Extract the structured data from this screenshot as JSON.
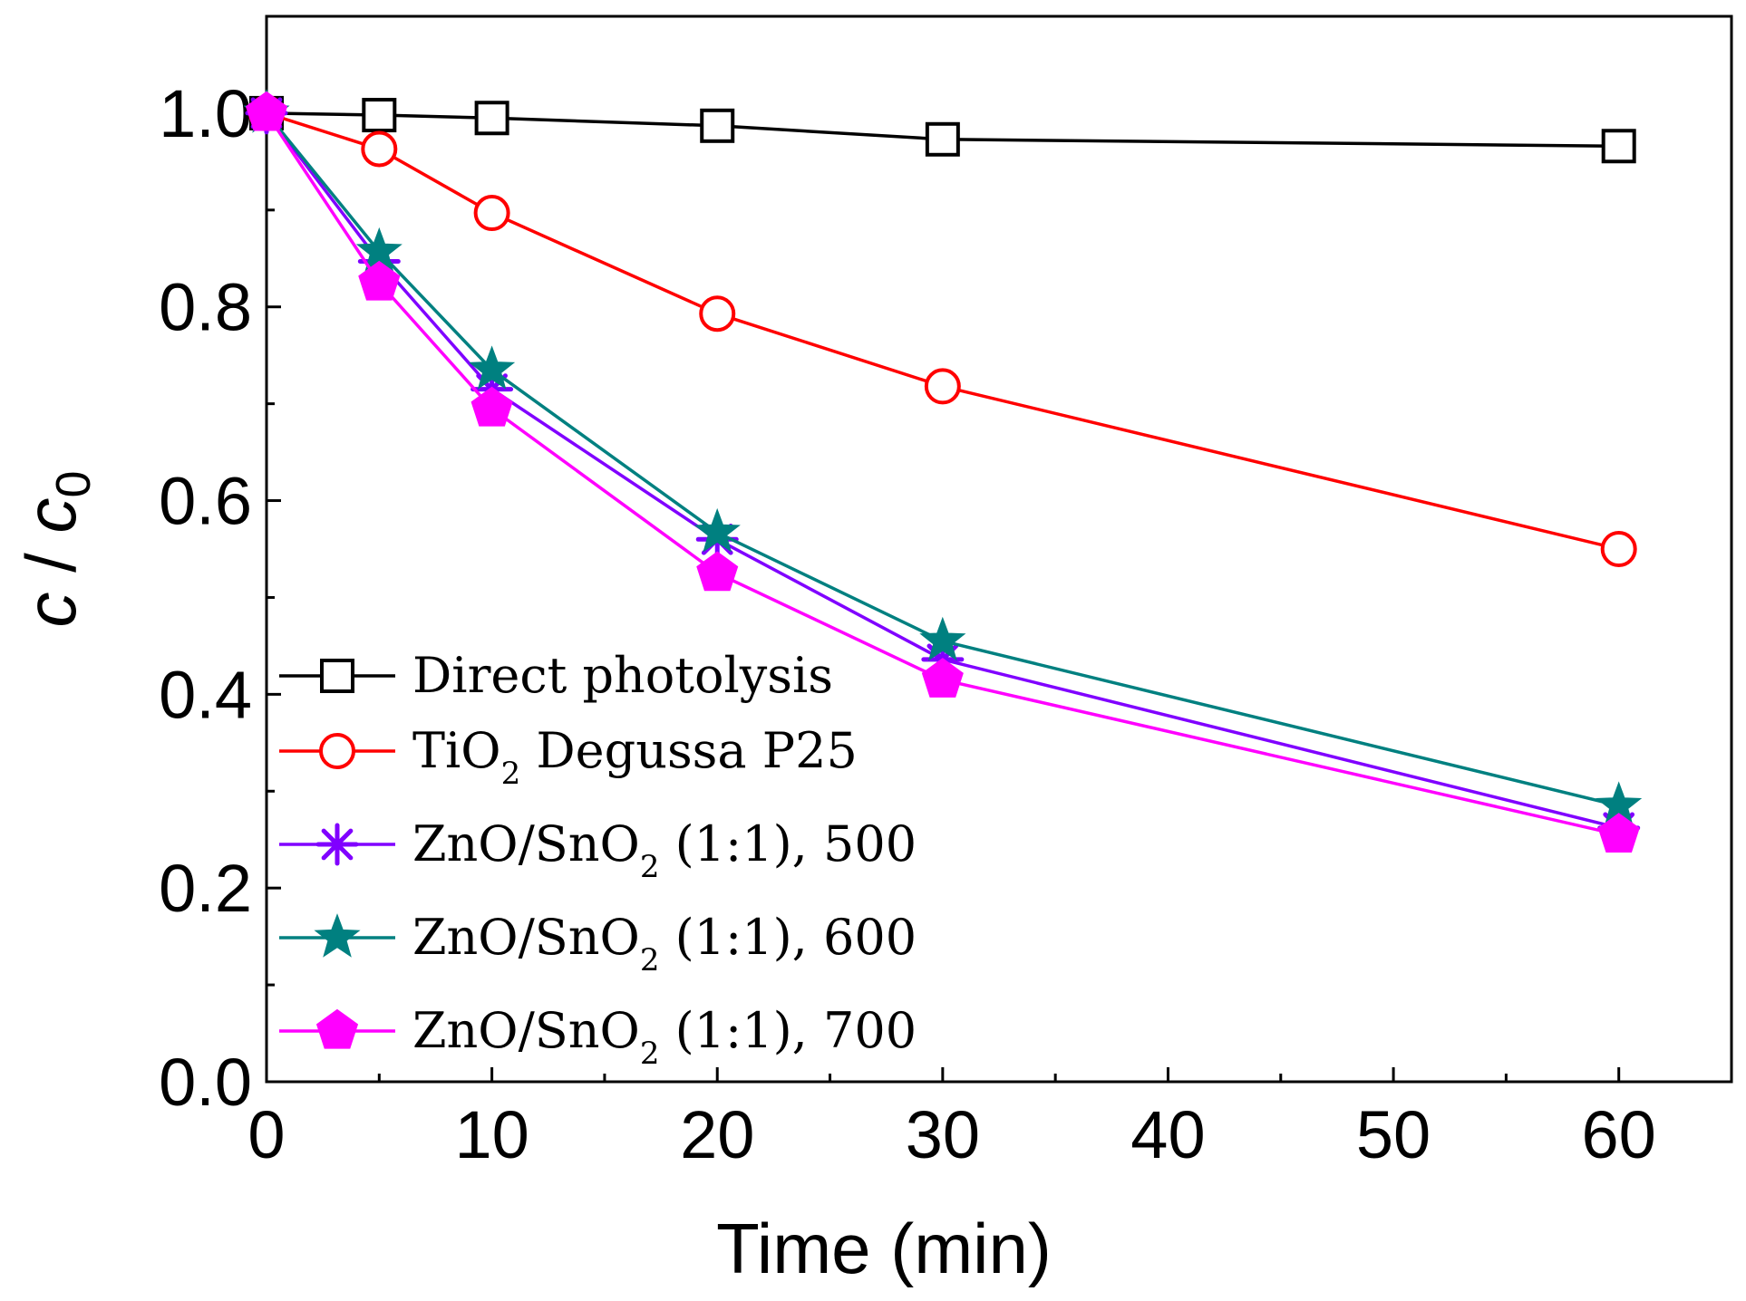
{
  "chart_data": {
    "type": "line",
    "xlabel": "Time (min)",
    "ylabel": {
      "main": "c",
      "sep": " / ",
      "base": "c",
      "sub": "0"
    },
    "xlim": [
      0,
      65
    ],
    "ylim": [
      0,
      1.1
    ],
    "xticks": [
      0,
      10,
      20,
      30,
      40,
      50,
      60
    ],
    "xtick_labels": [
      "0",
      "10",
      "20",
      "30",
      "40",
      "50",
      "60"
    ],
    "yticks": [
      0.0,
      0.2,
      0.4,
      0.6,
      0.8,
      1.0
    ],
    "ytick_labels": [
      "0.0",
      "0.2",
      "0.4",
      "0.6",
      "0.8",
      "1.0"
    ],
    "x": [
      0,
      5,
      10,
      20,
      30,
      60
    ],
    "series": [
      {
        "name": "Direct photolysis",
        "label": [
          "Direct photolysis"
        ],
        "marker": "square",
        "color": "#000000",
        "values": [
          1.0,
          0.998,
          0.995,
          0.987,
          0.973,
          0.966
        ]
      },
      {
        "name": "TiO2 Degussa P25",
        "label": [
          "TiO",
          "2",
          " Degussa P25"
        ],
        "marker": "circle",
        "color": "#ff0000",
        "values": [
          1.0,
          0.963,
          0.897,
          0.793,
          0.718,
          0.55
        ]
      },
      {
        "name": "ZnO/SnO2 (1:1), 500",
        "label": [
          "ZnO/SnO",
          "2",
          " (1:1), 500"
        ],
        "marker": "asterisk",
        "color": "#8000ff",
        "values": [
          1.0,
          0.847,
          0.715,
          0.56,
          0.436,
          0.262
        ]
      },
      {
        "name": "ZnO/SnO2 (1:1), 600",
        "label": [
          "ZnO/SnO",
          "2",
          " (1:1), 600"
        ],
        "marker": "star",
        "color": "#008080",
        "values": [
          1.0,
          0.857,
          0.735,
          0.567,
          0.455,
          0.285
        ]
      },
      {
        "name": "ZnO/SnO2 (1:1), 700",
        "label": [
          "ZnO/SnO",
          "2",
          " (1:1), 700"
        ],
        "marker": "pentagon",
        "color": "#ff00ff",
        "values": [
          1.0,
          0.825,
          0.695,
          0.525,
          0.415,
          0.255
        ]
      }
    ],
    "legend_position": "bottom-left"
  }
}
